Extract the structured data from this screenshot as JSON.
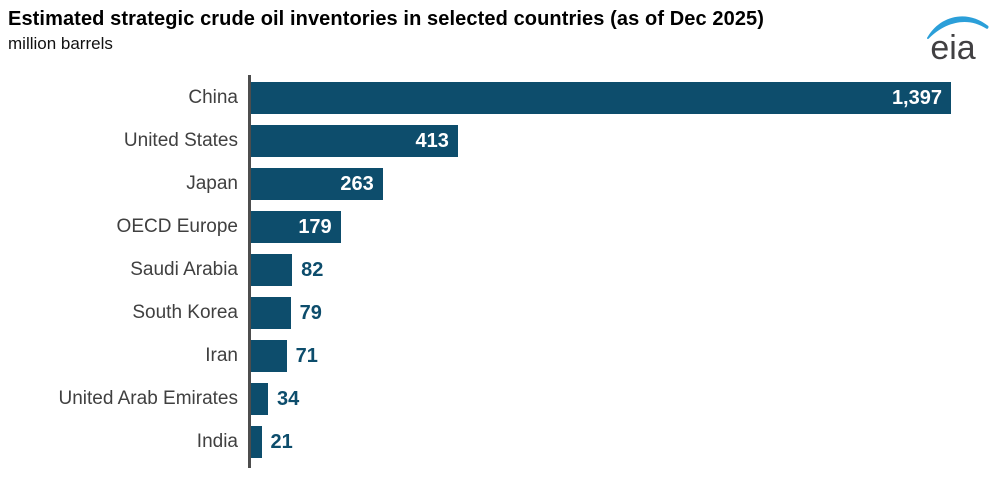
{
  "header": {
    "title": "Estimated strategic crude oil inventories in selected countries (as of Dec 2025)",
    "subtitle": "million barrels",
    "logo_text": "eia"
  },
  "chart_data": {
    "type": "bar",
    "orientation": "horizontal",
    "title": "Estimated strategic crude oil inventories in selected countries (as of Dec 2025)",
    "unit_label": "million barrels",
    "categories": [
      "China",
      "United States",
      "Japan",
      "OECD Europe",
      "Saudi Arabia",
      "South Korea",
      "Iran",
      "United Arab Emirates",
      "India"
    ],
    "values": [
      1397,
      413,
      263,
      179,
      82,
      79,
      71,
      34,
      21
    ],
    "value_labels": [
      "1,397",
      "413",
      "263",
      "179",
      "82",
      "79",
      "71",
      "34",
      "21"
    ],
    "xlim": [
      0,
      1400
    ],
    "grid": false,
    "legend": "none",
    "axes": "single vertical baseline at zero, no x-axis ticks",
    "value_label_position": "inside bar end for large bars, outside for small bars"
  },
  "colors": {
    "bar": "#0d4d6c",
    "value_inside": "#ffffff",
    "value_outside": "#0d4d6c",
    "category_text": "#404040",
    "axis_line": "#4d4d4d",
    "logo_swoosh": "#2b9fd9",
    "logo_text": "#414042"
  }
}
